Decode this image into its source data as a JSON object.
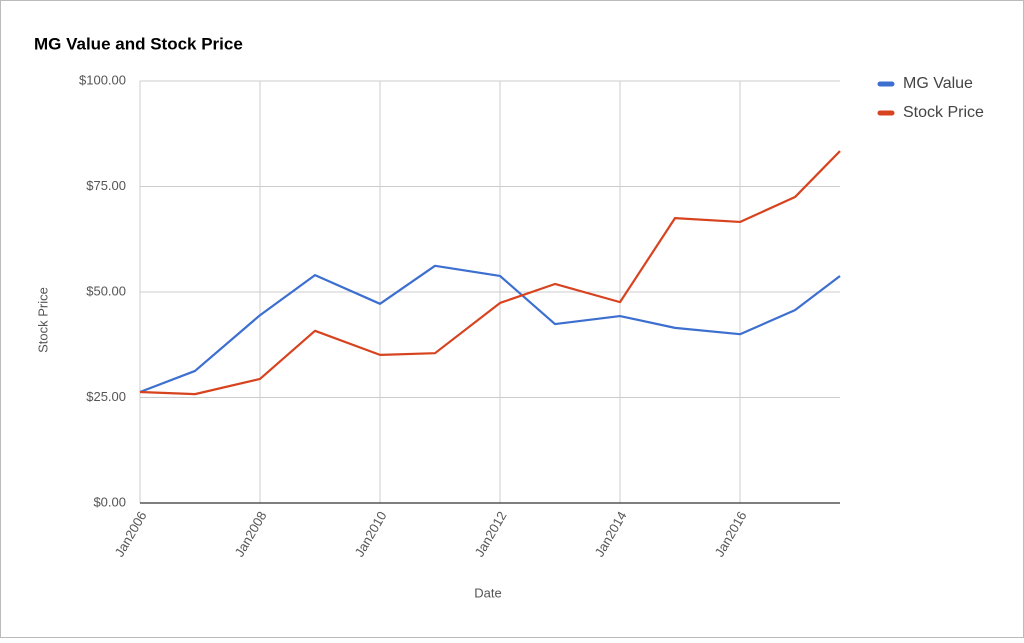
{
  "chart_data": {
    "type": "line",
    "title": "MG Value and Stock Price",
    "x_label": "Date",
    "y_label": "Stock Price",
    "x": [
      "2006-01",
      "2006-12",
      "2008-01",
      "2008-12",
      "2010-01",
      "2010-12",
      "2012-01",
      "2012-12",
      "2014-01",
      "2014-12",
      "2016-01",
      "2016-12",
      "2017-09"
    ],
    "series": [
      {
        "name": "MG Value",
        "color": "#3c6fcf",
        "values": [
          26.3,
          31.3,
          44.5,
          54.0,
          47.2,
          56.2,
          53.8,
          42.4,
          44.3,
          41.5,
          40.0,
          45.7,
          53.8
        ]
      },
      {
        "name": "Stock Price",
        "color": "#d8431f",
        "values": [
          26.3,
          25.8,
          29.4,
          40.8,
          35.1,
          35.5,
          47.4,
          51.9,
          47.6,
          67.5,
          66.6,
          72.5,
          83.4
        ]
      }
    ],
    "xlim": [
      "2006-01",
      "2017-09"
    ],
    "xticks": [
      {
        "value": "2006-01",
        "label": "Jan2006"
      },
      {
        "value": "2008-01",
        "label": "Jan2008"
      },
      {
        "value": "2010-01",
        "label": "Jan2010"
      },
      {
        "value": "2012-01",
        "label": "Jan2012"
      },
      {
        "value": "2014-01",
        "label": "Jan2014"
      },
      {
        "value": "2016-01",
        "label": "Jan2016"
      }
    ],
    "ylim": [
      0,
      100
    ],
    "yticks": [
      {
        "value": 0,
        "label": "$0.00"
      },
      {
        "value": 25,
        "label": "$25.00"
      },
      {
        "value": 50,
        "label": "$50.00"
      },
      {
        "value": 75,
        "label": "$75.00"
      },
      {
        "value": 100,
        "label": "$100.00"
      }
    ],
    "grid": true,
    "legend": "right"
  }
}
